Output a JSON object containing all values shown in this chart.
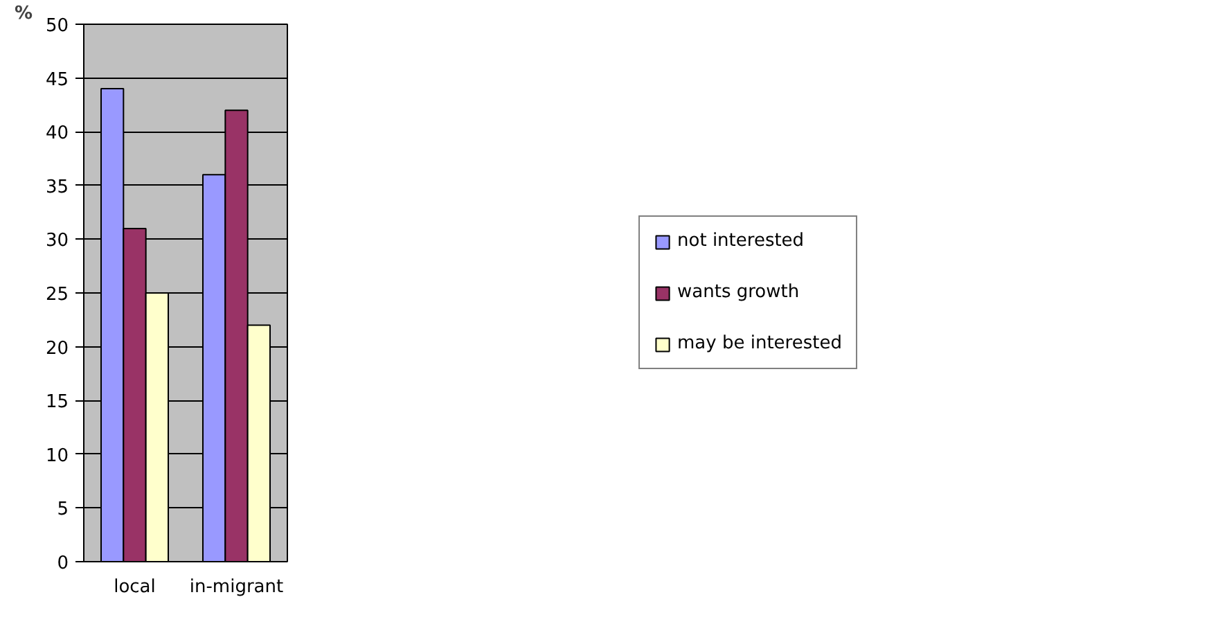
{
  "chart_data": {
    "type": "bar",
    "ylabel": "%",
    "categories": [
      "local",
      "in-migrant"
    ],
    "series": [
      {
        "name": "not interested",
        "color": "#9999ff",
        "values": [
          44,
          36
        ]
      },
      {
        "name": "wants growth",
        "color": "#993366",
        "values": [
          31,
          42
        ]
      },
      {
        "name": "may be interested",
        "color": "#ffffcc",
        "values": [
          25,
          22
        ]
      }
    ],
    "ylim": [
      0,
      50
    ],
    "yticks": [
      0,
      5,
      10,
      15,
      20,
      25,
      30,
      35,
      40,
      45,
      50
    ],
    "grid": "y",
    "legend": "right"
  }
}
